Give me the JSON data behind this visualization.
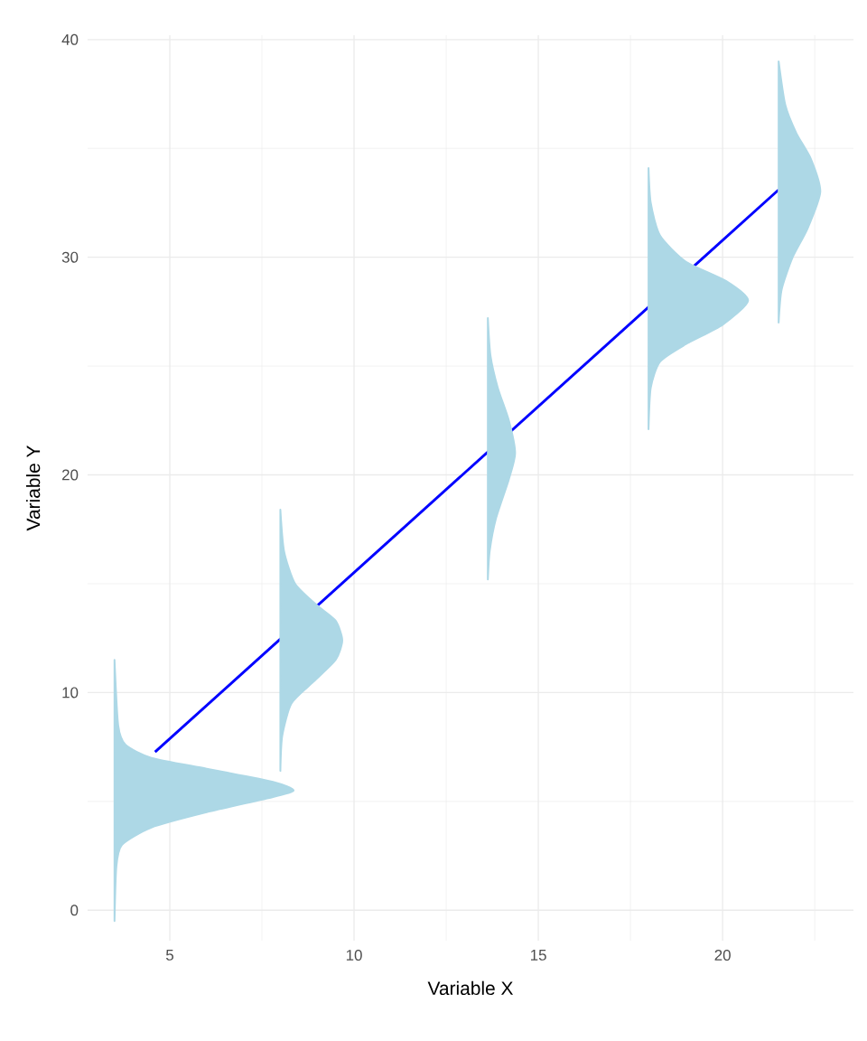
{
  "chart_data": {
    "type": "line",
    "xlabel": "Variable X",
    "ylabel": "Variable Y",
    "xlim": [
      2.77,
      23.55
    ],
    "ylim": [
      -1.4,
      40.2
    ],
    "xticks": [
      5,
      10,
      15,
      20
    ],
    "yticks": [
      0,
      10,
      20,
      30,
      40
    ],
    "grid": true,
    "series": [
      {
        "color": "#0000ff",
        "x": [
          4.6,
          21.52
        ],
        "values": [
          7.27,
          33.1
        ]
      },
      {
        "type": "area",
        "color": "#add8e6",
        "x": [
          3.5,
          3.55,
          3.7,
          4.5,
          6,
          7.8,
          8.36,
          7.8,
          6,
          4.5,
          3.8,
          3.6,
          3.5
        ],
        "values": [
          -0.5,
          2,
          3,
          3.8,
          4.5,
          5.2,
          5.5,
          5.9,
          6.5,
          7,
          7.6,
          8.5,
          11.5
        ]
      },
      {
        "type": "area",
        "color": "#add8e6",
        "x": [
          8,
          8.05,
          8.3,
          8.9,
          9.5,
          9.68,
          9.5,
          9,
          8.4,
          8.1,
          8
        ],
        "values": [
          6.4,
          8,
          9.5,
          10.5,
          11.5,
          12.4,
          13.3,
          14,
          15,
          16.5,
          18.4
        ]
      },
      {
        "type": "area",
        "color": "#add8e6",
        "x": [
          13.63,
          13.68,
          13.85,
          14.2,
          14.37,
          14.2,
          13.9,
          13.7,
          13.63
        ],
        "values": [
          15.2,
          16.5,
          18,
          19.8,
          21,
          22.5,
          24,
          25.5,
          27.2
        ]
      },
      {
        "type": "area",
        "color": "#add8e6",
        "x": [
          17.99,
          18.05,
          18.3,
          19,
          20,
          20.69,
          20.1,
          19,
          18.3,
          18.05,
          17.99
        ],
        "values": [
          22.1,
          24,
          25.2,
          26,
          26.9,
          28,
          28.9,
          29.8,
          31,
          32.5,
          34.1
        ]
      },
      {
        "type": "area",
        "color": "#add8e6",
        "x": [
          21.52,
          21.6,
          21.9,
          22.3,
          22.65,
          22.4,
          22,
          21.7,
          21.52
        ],
        "values": [
          27,
          28.5,
          30,
          31.3,
          33,
          34.5,
          35.7,
          37,
          39
        ]
      }
    ]
  }
}
